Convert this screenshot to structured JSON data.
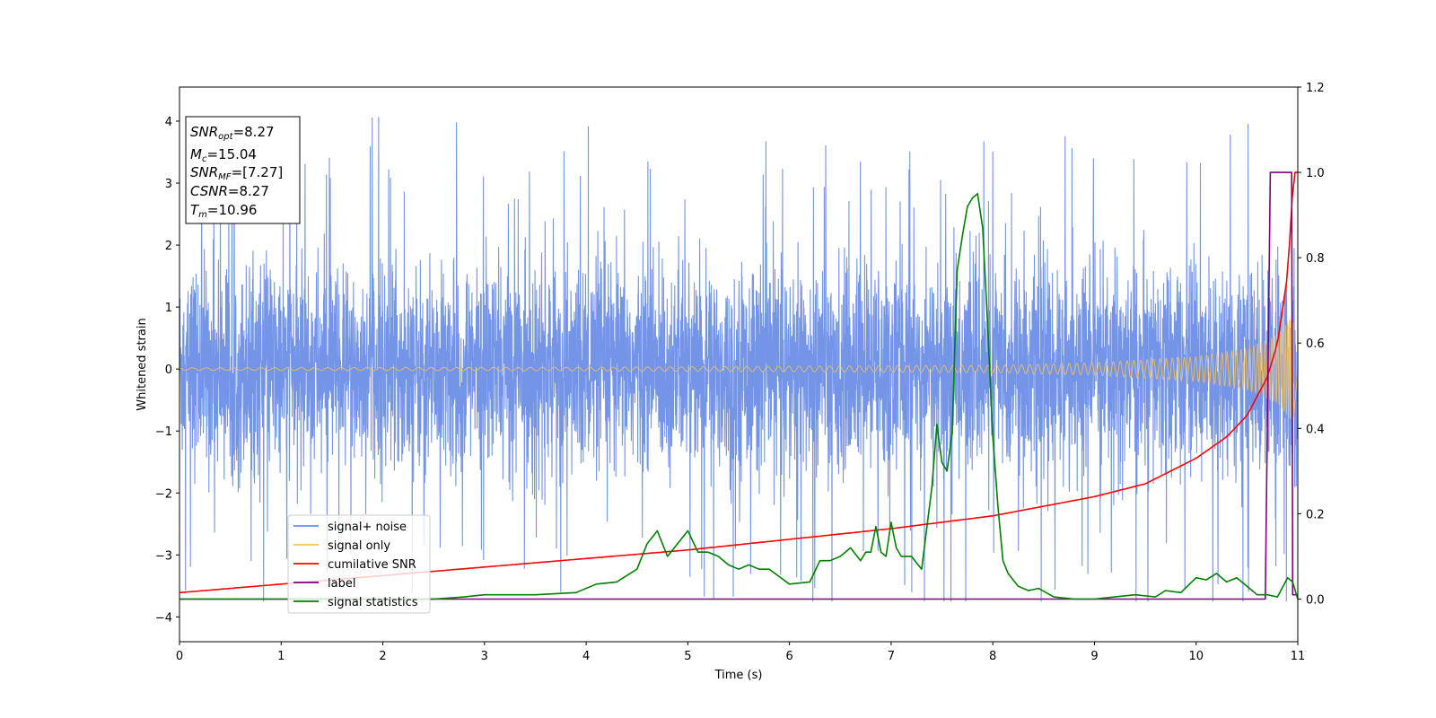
{
  "chart_data": {
    "type": "line",
    "xlabel": "Time (s)",
    "ylabel": "Whitened strain",
    "xlim": [
      0,
      11
    ],
    "ylim": [
      -4.4,
      4.55
    ],
    "y2lim": [
      -0.1,
      1.2
    ],
    "xticks": [
      "0",
      "1",
      "2",
      "3",
      "4",
      "5",
      "6",
      "7",
      "8",
      "9",
      "10",
      "11"
    ],
    "yticks": [
      "4",
      "3",
      "2",
      "1",
      "0",
      "−1",
      "−2",
      "−3",
      "−4"
    ],
    "y2ticks": [
      "1.2",
      "1.0",
      "0.8",
      "0.6",
      "0.4",
      "0.2",
      "0.0"
    ],
    "grid": false,
    "legend_position": "lower-left",
    "info_box": {
      "position": "top-left",
      "lines": [
        {
          "sym": "SNR",
          "sub": "opt",
          "val": "=8.27"
        },
        {
          "sym": "M",
          "sub": "c",
          "val": "=15.04"
        },
        {
          "sym": "SNR",
          "sub": "MF",
          "val": "=[7.27]"
        },
        {
          "sym": "CSNR",
          "sub": "",
          "val": "=8.27"
        },
        {
          "sym": "T",
          "sub": "m",
          "val": "=10.96"
        }
      ]
    },
    "series": [
      {
        "name": "signal+ noise",
        "axis": "left",
        "color": "#6d8ee6",
        "description_values": {
          "noise_std": 0.82,
          "range": [
            -3.75,
            4.15
          ]
        }
      },
      {
        "name": "signal only",
        "axis": "left",
        "color": "#f5c25c",
        "envelope": {
          "x": [
            0,
            4,
            8,
            9,
            10,
            10.5,
            10.8,
            10.96,
            11
          ],
          "amplitude": [
            0.02,
            0.03,
            0.06,
            0.1,
            0.2,
            0.33,
            0.55,
            0.9,
            0
          ]
        }
      },
      {
        "name": "cumilative SNR",
        "axis": "right",
        "color": "#ff0000",
        "x": [
          0,
          1,
          2,
          3,
          4,
          5,
          6,
          7,
          8,
          9,
          9.5,
          10,
          10.3,
          10.5,
          10.7,
          10.8,
          10.9,
          10.96,
          11
        ],
        "y": [
          0.015,
          0.035,
          0.055,
          0.075,
          0.095,
          0.115,
          0.14,
          0.165,
          0.195,
          0.24,
          0.27,
          0.33,
          0.38,
          0.43,
          0.52,
          0.6,
          0.76,
          1.0,
          1.0
        ]
      },
      {
        "name": "label",
        "axis": "right",
        "color": "#800080",
        "x": [
          0,
          10.68,
          10.73,
          10.94,
          10.95,
          11
        ],
        "y": [
          0,
          0,
          1,
          1,
          0.01,
          0.01
        ]
      },
      {
        "name": "signal statistics",
        "axis": "right",
        "color": "#008000",
        "x": [
          0,
          2.5,
          2.8,
          3.0,
          3.5,
          3.9,
          4.1,
          4.3,
          4.5,
          4.6,
          4.7,
          4.8,
          4.9,
          5.0,
          5.1,
          5.2,
          5.3,
          5.4,
          5.5,
          5.6,
          5.7,
          5.8,
          6.0,
          6.2,
          6.3,
          6.4,
          6.5,
          6.6,
          6.7,
          6.75,
          6.8,
          6.85,
          6.9,
          6.95,
          7.0,
          7.05,
          7.1,
          7.2,
          7.3,
          7.4,
          7.45,
          7.5,
          7.55,
          7.6,
          7.65,
          7.7,
          7.75,
          7.8,
          7.85,
          7.9,
          7.95,
          8.0,
          8.05,
          8.1,
          8.15,
          8.25,
          8.35,
          8.45,
          8.6,
          8.8,
          9.0,
          9.2,
          9.4,
          9.6,
          9.7,
          9.85,
          10.0,
          10.1,
          10.2,
          10.3,
          10.4,
          10.5,
          10.6,
          10.7,
          10.8,
          10.9,
          10.95,
          11.0
        ],
        "y": [
          0.0,
          0.0,
          0.005,
          0.01,
          0.01,
          0.015,
          0.035,
          0.04,
          0.07,
          0.13,
          0.16,
          0.1,
          0.13,
          0.16,
          0.11,
          0.11,
          0.1,
          0.08,
          0.07,
          0.08,
          0.07,
          0.07,
          0.035,
          0.04,
          0.09,
          0.09,
          0.1,
          0.12,
          0.09,
          0.11,
          0.11,
          0.17,
          0.11,
          0.1,
          0.18,
          0.12,
          0.1,
          0.1,
          0.07,
          0.26,
          0.41,
          0.32,
          0.3,
          0.39,
          0.77,
          0.85,
          0.92,
          0.94,
          0.95,
          0.87,
          0.64,
          0.38,
          0.22,
          0.09,
          0.06,
          0.03,
          0.02,
          0.025,
          0.005,
          0.0,
          0.0,
          0.005,
          0.01,
          0.005,
          0.02,
          0.015,
          0.05,
          0.045,
          0.06,
          0.04,
          0.05,
          0.03,
          0.01,
          0.01,
          0.005,
          0.05,
          0.04,
          0.0
        ]
      }
    ]
  }
}
